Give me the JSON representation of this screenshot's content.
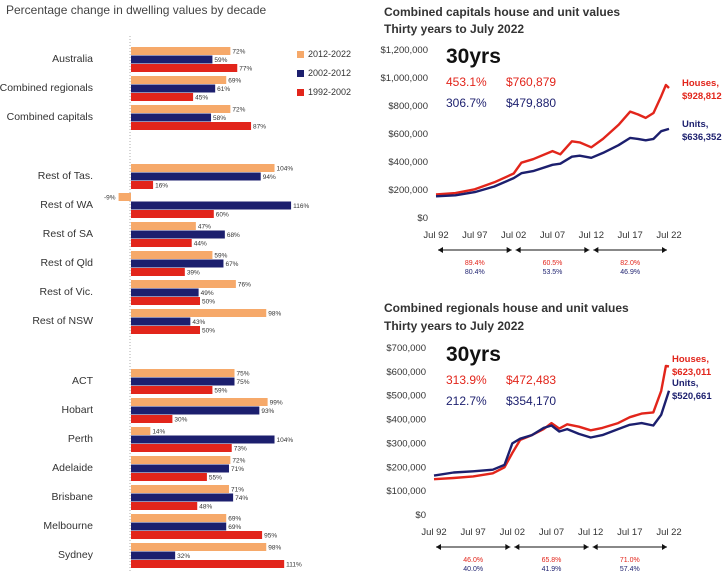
{
  "chart_data": [
    {
      "type": "bar",
      "title": "Percentage change in dwelling values by decade",
      "series": [
        {
          "name": "2012-2022",
          "color": "#f6a96a"
        },
        {
          "name": "2002-2012",
          "color": "#1c1f6e"
        },
        {
          "name": "1992-2002",
          "color": "#e2251b"
        }
      ],
      "categories": [
        {
          "label": "Australia",
          "values": [
            72,
            59,
            77
          ]
        },
        {
          "label": "Combined regionals",
          "values": [
            69,
            61,
            45
          ]
        },
        {
          "label": "Combined capitals",
          "values": [
            72,
            58,
            87
          ]
        },
        {
          "label": "Rest of Tas.",
          "values": [
            104,
            94,
            16
          ]
        },
        {
          "label": "Rest of WA",
          "values": [
            -9,
            116,
            60
          ]
        },
        {
          "label": "Rest of SA",
          "values": [
            47,
            68,
            44
          ]
        },
        {
          "label": "Rest of Qld",
          "values": [
            59,
            67,
            39
          ]
        },
        {
          "label": "Rest of Vic.",
          "values": [
            76,
            49,
            50
          ]
        },
        {
          "label": "Rest of NSW",
          "values": [
            98,
            43,
            50
          ]
        },
        {
          "label": "ACT",
          "values": [
            75,
            75,
            59
          ]
        },
        {
          "label": "Hobart",
          "values": [
            99,
            93,
            30
          ]
        },
        {
          "label": "Perth",
          "values": [
            14,
            104,
            73
          ]
        },
        {
          "label": "Adelaide",
          "values": [
            72,
            71,
            55
          ]
        },
        {
          "label": "Brisbane",
          "values": [
            71,
            74,
            48
          ]
        },
        {
          "label": "Melbourne",
          "values": [
            69,
            69,
            95
          ]
        },
        {
          "label": "Sydney",
          "values": [
            98,
            32,
            111
          ]
        }
      ],
      "legend_position": "top-right"
    },
    {
      "type": "line",
      "title": "Combined capitals house and unit values",
      "subtitle": "Thirty years to July 2022",
      "x_ticks": [
        "Jul 92",
        "Jul 97",
        "Jul 02",
        "Jul 07",
        "Jul 12",
        "Jul 17",
        "Jul 22"
      ],
      "x_range": [
        1992.5,
        2022.5
      ],
      "y_ticks": [
        "$0",
        "$200,000",
        "$400,000",
        "$600,000",
        "$800,000",
        "$1,000,000",
        "$1,200,000"
      ],
      "ylim": [
        0,
        1200000
      ],
      "big_label": "30yrs",
      "house_growth": "453.1%",
      "house_change": "$760,879",
      "unit_growth": "306.7%",
      "unit_change": "$479,880",
      "series_labels": {
        "houses": "Houses,",
        "houses_value": "$928,812",
        "units": "Units,",
        "units_value": "$636,352"
      },
      "periods": [
        {
          "house": "89.4%",
          "unit": "80.4%"
        },
        {
          "house": "60.5%",
          "unit": "53.5%"
        },
        {
          "house": "82.0%",
          "unit": "46.9%"
        }
      ],
      "series": [
        {
          "name": "Houses",
          "color": "#e2251b",
          "points": [
            [
              1992.5,
              168000
            ],
            [
              1995,
              178000
            ],
            [
              1997.5,
              205000
            ],
            [
              2000,
              255000
            ],
            [
              2002.5,
              318000
            ],
            [
              2003.5,
              395000
            ],
            [
              2005,
              420000
            ],
            [
              2007.5,
              478000
            ],
            [
              2008.5,
              455000
            ],
            [
              2010,
              548000
            ],
            [
              2011,
              540000
            ],
            [
              2012.5,
              505000
            ],
            [
              2014,
              565000
            ],
            [
              2016,
              665000
            ],
            [
              2017.5,
              760000
            ],
            [
              2018.5,
              740000
            ],
            [
              2019.5,
              715000
            ],
            [
              2020.5,
              750000
            ],
            [
              2021.5,
              870000
            ],
            [
              2022.1,
              950000
            ],
            [
              2022.5,
              928812
            ]
          ]
        },
        {
          "name": "Units",
          "color": "#1c1f6e",
          "points": [
            [
              1992.5,
              155000
            ],
            [
              1995,
              162000
            ],
            [
              1997.5,
              185000
            ],
            [
              2000,
              225000
            ],
            [
              2002.5,
              285000
            ],
            [
              2003.5,
              320000
            ],
            [
              2005,
              335000
            ],
            [
              2007.5,
              380000
            ],
            [
              2008.5,
              388000
            ],
            [
              2010,
              438000
            ],
            [
              2011,
              445000
            ],
            [
              2012.5,
              430000
            ],
            [
              2014,
              465000
            ],
            [
              2016,
              520000
            ],
            [
              2017.5,
              572000
            ],
            [
              2018.5,
              565000
            ],
            [
              2019.5,
              555000
            ],
            [
              2020.5,
              565000
            ],
            [
              2021.5,
              620000
            ],
            [
              2022.5,
              636352
            ]
          ]
        }
      ]
    },
    {
      "type": "line",
      "title": "Combined regionals house and unit values",
      "subtitle": "Thirty years to July 2022",
      "x_ticks": [
        "Jul 92",
        "Jul 97",
        "Jul 02",
        "Jul 07",
        "Jul 12",
        "Jul 17",
        "Jul 22"
      ],
      "x_range": [
        1992.5,
        2022.5
      ],
      "y_ticks": [
        "$0",
        "$100,000",
        "$200,000",
        "$300,000",
        "$400,000",
        "$500,000",
        "$600,000",
        "$700,000"
      ],
      "ylim": [
        0,
        700000
      ],
      "big_label": "30yrs",
      "house_growth": "313.9%",
      "house_change": "$472,483",
      "unit_growth": "212.7%",
      "unit_change": "$354,170",
      "series_labels": {
        "houses": "Houses,",
        "houses_value": "$623,011",
        "units": "Units,",
        "units_value": "$520,661"
      },
      "periods": [
        {
          "house": "46.0%",
          "unit": "40.0%"
        },
        {
          "house": "65.8%",
          "unit": "41.9%"
        },
        {
          "house": "71.0%",
          "unit": "57.4%"
        }
      ],
      "series": [
        {
          "name": "Houses",
          "color": "#e2251b",
          "points": [
            [
              1992.5,
              150000
            ],
            [
              1995,
              155000
            ],
            [
              1997.5,
              162000
            ],
            [
              2000,
              175000
            ],
            [
              2001.5,
              200000
            ],
            [
              2002.5,
              260000
            ],
            [
              2003.5,
              315000
            ],
            [
              2005,
              335000
            ],
            [
              2006.5,
              360000
            ],
            [
              2007.5,
              385000
            ],
            [
              2008.5,
              362000
            ],
            [
              2009.5,
              380000
            ],
            [
              2011,
              370000
            ],
            [
              2012.5,
              355000
            ],
            [
              2014,
              365000
            ],
            [
              2016,
              385000
            ],
            [
              2017.5,
              410000
            ],
            [
              2019,
              425000
            ],
            [
              2020.5,
              430000
            ],
            [
              2021.5,
              520000
            ],
            [
              2022.1,
              625000
            ],
            [
              2022.5,
              623011
            ]
          ]
        },
        {
          "name": "Units",
          "color": "#1c1f6e",
          "points": [
            [
              1992.5,
              165000
            ],
            [
              1995,
              178000
            ],
            [
              1997.5,
              183000
            ],
            [
              2000,
              190000
            ],
            [
              2001.5,
              210000
            ],
            [
              2002.5,
              300000
            ],
            [
              2003.5,
              320000
            ],
            [
              2005,
              335000
            ],
            [
              2006.5,
              365000
            ],
            [
              2007.5,
              375000
            ],
            [
              2008.5,
              350000
            ],
            [
              2009.5,
              360000
            ],
            [
              2011,
              340000
            ],
            [
              2012.5,
              325000
            ],
            [
              2014,
              335000
            ],
            [
              2016,
              360000
            ],
            [
              2017.5,
              378000
            ],
            [
              2019,
              385000
            ],
            [
              2020.5,
              375000
            ],
            [
              2021.5,
              420000
            ],
            [
              2022.5,
              520661
            ]
          ]
        }
      ]
    }
  ]
}
